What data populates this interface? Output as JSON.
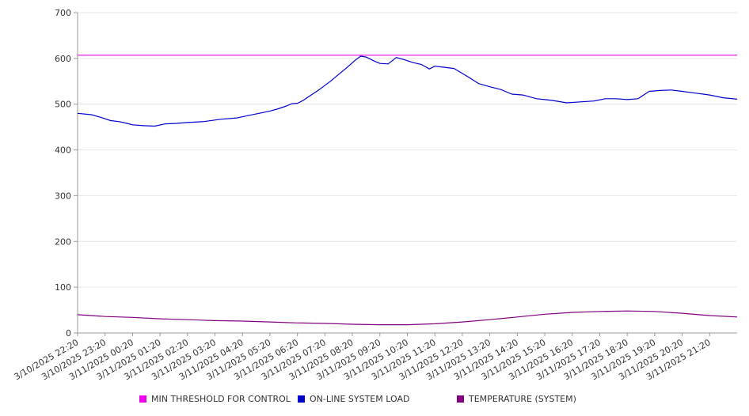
{
  "chart_data": {
    "type": "line",
    "ylim": [
      0,
      700
    ],
    "y_ticks": [
      0,
      100,
      200,
      300,
      400,
      500,
      600,
      700
    ],
    "x_tick_labels": [
      "3/10/2025 22:20",
      "3/10/2025 23:20",
      "3/11/2025 00:20",
      "3/11/2025 01:20",
      "3/11/2025 02:20",
      "3/11/2025 03:20",
      "3/11/2025 04:20",
      "3/11/2025 05:20",
      "3/11/2025 06:20",
      "3/11/2025 07:20",
      "3/11/2025 08:20",
      "3/11/2025 09:20",
      "3/11/2025 10:20",
      "3/11/2025 11:20",
      "3/11/2025 12:20",
      "3/11/2025 13:20",
      "3/11/2025 14:20",
      "3/11/2025 15:20",
      "3/11/2025 16:20",
      "3/11/2025 17:20",
      "3/11/2025 18:20",
      "3/11/2025 19:20",
      "3/11/2025 20:20",
      "3/11/2025 21:20"
    ],
    "x_domain_hours": [
      0,
      24
    ],
    "grid": true,
    "legend_position": "bottom",
    "series": [
      {
        "name": "MIN THRESHOLD FOR CONTROL",
        "color": "#ee00ee",
        "x_hours": [
          0,
          24
        ],
        "values": [
          607,
          607
        ]
      },
      {
        "name": "ON-LINE SYSTEM LOAD",
        "color": "#0000cc",
        "x_hours": [
          0,
          0.5,
          0.8,
          1.2,
          1.5,
          1.8,
          2.0,
          2.4,
          2.8,
          3.2,
          3.6,
          4.0,
          4.6,
          5.2,
          5.8,
          6.2,
          6.6,
          7.0,
          7.3,
          7.6,
          7.8,
          8.0,
          8.2,
          8.5,
          8.8,
          9.2,
          9.5,
          9.8,
          10.1,
          10.3,
          10.5,
          10.8,
          11.0,
          11.3,
          11.6,
          11.9,
          12.2,
          12.5,
          12.8,
          13.0,
          13.3,
          13.7,
          14.2,
          14.6,
          15.0,
          15.4,
          15.8,
          16.2,
          16.7,
          17.0,
          17.3,
          17.8,
          18.3,
          18.8,
          19.2,
          19.6,
          20.0,
          20.4,
          20.8,
          21.2,
          21.6,
          22.0,
          22.5,
          23.0,
          23.5,
          24.0
        ],
        "values": [
          480,
          477,
          472,
          464,
          462,
          458,
          455,
          453,
          452,
          457,
          458,
          460,
          462,
          467,
          470,
          475,
          480,
          485,
          490,
          496,
          501,
          502,
          508,
          520,
          532,
          550,
          565,
          580,
          596,
          605,
          603,
          594,
          589,
          588,
          602,
          597,
          591,
          587,
          577,
          583,
          581,
          578,
          560,
          545,
          538,
          532,
          522,
          520,
          512,
          510,
          508,
          503,
          505,
          507,
          512,
          512,
          510,
          512,
          528,
          530,
          531,
          528,
          524,
          520,
          514,
          511
        ]
      },
      {
        "name": "TEMPERATURE (SYSTEM)",
        "color": "#800080",
        "x_hours": [
          0,
          1,
          2,
          3,
          4,
          5,
          6,
          7,
          8,
          9,
          10,
          11,
          12,
          13,
          14,
          15,
          16,
          17,
          18,
          19,
          20,
          21,
          22,
          23,
          24
        ],
        "values": [
          40,
          36,
          34,
          31,
          29,
          27,
          26,
          24,
          22,
          21,
          19,
          18,
          18,
          20,
          24,
          29,
          35,
          41,
          45,
          47,
          48,
          47,
          43,
          38,
          35
        ]
      }
    ]
  }
}
